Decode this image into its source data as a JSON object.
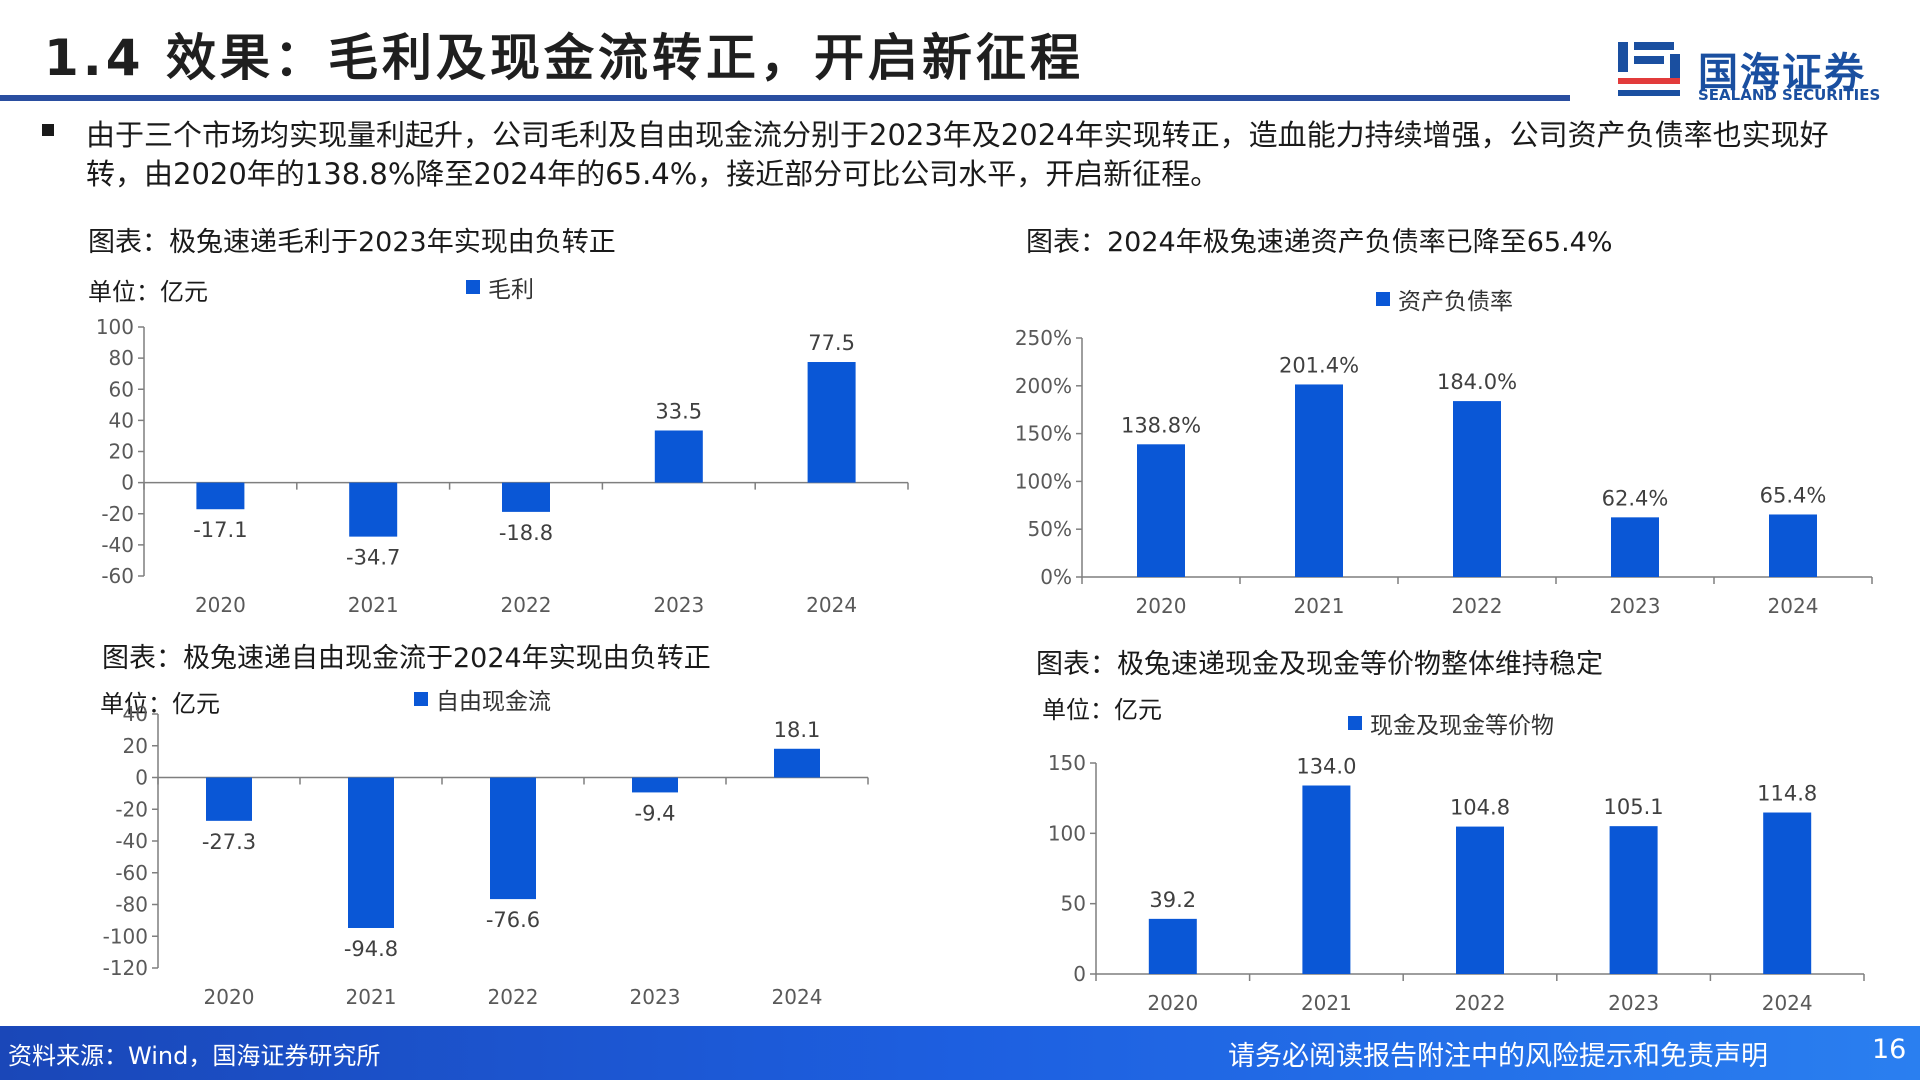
{
  "header": {
    "title": "1.4 效果：毛利及现金流转正，开启新征程",
    "logo_cn": "国海证券",
    "logo_en": "SEALAND SECURITIES"
  },
  "intro": "由于三个市场均实现量利起升，公司毛利及自由现金流分别于2023年及2024年实现转正，造血能力持续增强，公司资产负债率也实现好转，由2020年的138.8%降至2024年的65.4%，接近部分可比公司水平，开启新征程。",
  "colors": {
    "bar": "#0a57d6",
    "accent": "#2a4ea0"
  },
  "charts": {
    "c1": {
      "title": "图表：极兔速递毛利于2023年实现由负转正",
      "unit": "单位：亿元",
      "legend": "毛利"
    },
    "c2": {
      "title": "图表：2024年极兔速递资产负债率已降至65.4%",
      "unit": "",
      "legend": "资产负债率"
    },
    "c3": {
      "title": "图表：极兔速递自由现金流于2024年实现由负转正",
      "unit": "单位：亿元",
      "legend": "自由现金流"
    },
    "c4": {
      "title": "图表：极兔速递现金及现金等价物整体维持稳定",
      "unit": "单位：亿元",
      "legend": "现金及现金等价物"
    }
  },
  "chart_data": [
    {
      "id": "c1",
      "type": "bar",
      "categories": [
        "2020",
        "2021",
        "2022",
        "2023",
        "2024"
      ],
      "series": [
        {
          "name": "毛利",
          "values": [
            -17.1,
            -34.7,
            -18.8,
            33.5,
            77.5
          ]
        }
      ],
      "ylim": [
        -60,
        100
      ],
      "yticks": [
        100,
        80,
        60,
        40,
        20,
        0,
        -20,
        -40,
        -60
      ],
      "labels": [
        "-17.1",
        "-34.7",
        "-18.8",
        "33.5",
        "77.5"
      ],
      "tick_suffix": ""
    },
    {
      "id": "c2",
      "type": "bar",
      "categories": [
        "2020",
        "2021",
        "2022",
        "2023",
        "2024"
      ],
      "series": [
        {
          "name": "资产负债率",
          "values": [
            138.8,
            201.4,
            184.0,
            62.4,
            65.4
          ]
        }
      ],
      "ylim": [
        0,
        250
      ],
      "yticks": [
        250,
        200,
        150,
        100,
        50,
        0
      ],
      "labels": [
        "138.8%",
        "201.4%",
        "184.0%",
        "62.4%",
        "65.4%"
      ],
      "tick_suffix": "%"
    },
    {
      "id": "c3",
      "type": "bar",
      "categories": [
        "2020",
        "2021",
        "2022",
        "2023",
        "2024"
      ],
      "series": [
        {
          "name": "自由现金流",
          "values": [
            -27.3,
            -94.8,
            -76.6,
            -9.4,
            18.1
          ]
        }
      ],
      "ylim": [
        -120,
        40
      ],
      "yticks": [
        40,
        20,
        0,
        -20,
        -40,
        -60,
        -80,
        -100,
        -120
      ],
      "labels": [
        "-27.3",
        "-94.8",
        "-76.6",
        "-9.4",
        "18.1"
      ],
      "tick_suffix": ""
    },
    {
      "id": "c4",
      "type": "bar",
      "categories": [
        "2020",
        "2021",
        "2022",
        "2023",
        "2024"
      ],
      "series": [
        {
          "name": "现金及现金等价物",
          "values": [
            39.2,
            134.0,
            104.8,
            105.1,
            114.8
          ]
        }
      ],
      "ylim": [
        0,
        150
      ],
      "yticks": [
        150,
        100,
        50,
        0
      ],
      "labels": [
        "39.2",
        "134.0",
        "104.8",
        "105.1",
        "114.8"
      ],
      "tick_suffix": ""
    }
  ],
  "footer": {
    "source": "资料来源：Wind，国海证券研究所",
    "disclaimer": "请务必阅读报告附注中的风险提示和免责声明",
    "page": "16"
  }
}
